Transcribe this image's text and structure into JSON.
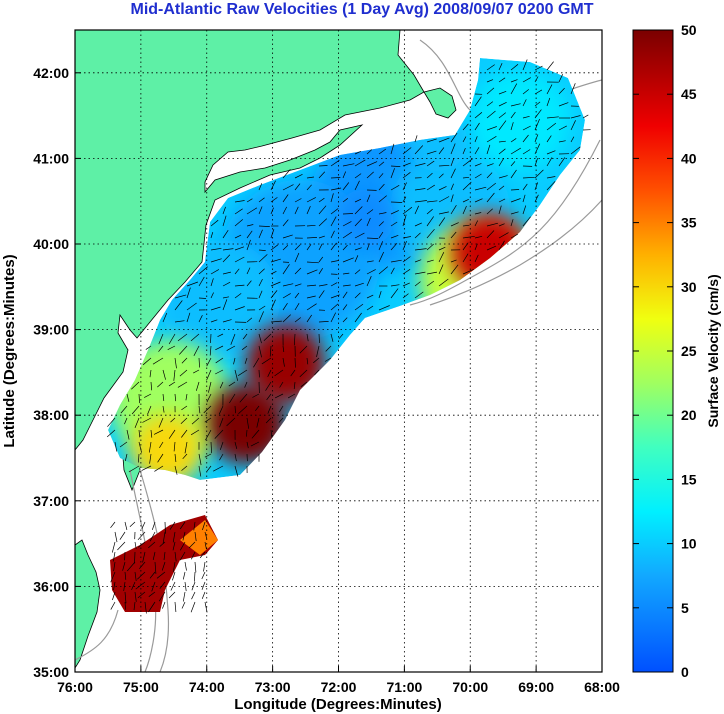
{
  "title": "Mid-Atlantic Raw Velocities (1 Day Avg) 2008/09/07 0200 GMT",
  "colors": {
    "land": "#5ef0a6",
    "title": "#1f2ecf",
    "vector": "#000000",
    "contour": "#9a9a9a"
  },
  "chart_data": {
    "type": "heatmap",
    "xlabel": "Longitude (Degrees:Minutes)",
    "ylabel": "Latitude (Degrees:Minutes)",
    "x_ticks": [
      {
        "value": 76,
        "label": "76:00"
      },
      {
        "value": 75,
        "label": "75:00"
      },
      {
        "value": 74,
        "label": "74:00"
      },
      {
        "value": 73,
        "label": "73:00"
      },
      {
        "value": 72,
        "label": "72:00"
      },
      {
        "value": 71,
        "label": "71:00"
      },
      {
        "value": 70,
        "label": "70:00"
      },
      {
        "value": 69,
        "label": "69:00"
      },
      {
        "value": 68,
        "label": "68:00"
      }
    ],
    "y_ticks": [
      {
        "value": 42,
        "label": "42:00"
      },
      {
        "value": 41,
        "label": "41:00"
      },
      {
        "value": 40,
        "label": "40:00"
      },
      {
        "value": 39,
        "label": "39:00"
      },
      {
        "value": 38,
        "label": "38:00"
      },
      {
        "value": 37,
        "label": "37:00"
      },
      {
        "value": 36,
        "label": "36:00"
      },
      {
        "value": 35,
        "label": "35:00"
      }
    ],
    "xlim": [
      76,
      68
    ],
    "ylim": [
      35,
      42.5
    ],
    "grid": true,
    "colorbar": {
      "label": "Surface Velocity (cm/s)",
      "range": [
        0,
        50
      ],
      "ticks": [
        {
          "value": 0,
          "label": "0"
        },
        {
          "value": 5,
          "label": "5"
        },
        {
          "value": 10,
          "label": "10"
        },
        {
          "value": 15,
          "label": "15"
        },
        {
          "value": 20,
          "label": "20"
        },
        {
          "value": 25,
          "label": "25"
        },
        {
          "value": 30,
          "label": "30"
        },
        {
          "value": 35,
          "label": "35"
        },
        {
          "value": 40,
          "label": "40"
        },
        {
          "value": 45,
          "label": "45"
        },
        {
          "value": 50,
          "label": "50"
        }
      ]
    },
    "velocity_features": [
      {
        "name": "",
        "lon": 73.4,
        "lat": 37.9,
        "speed": 50
      },
      {
        "name": "",
        "lon": 72.8,
        "lat": 38.6,
        "speed": 48
      },
      {
        "name": "",
        "lon": 74.6,
        "lat": 37.6,
        "speed": 30
      },
      {
        "name": "",
        "lon": 75.1,
        "lat": 36.0,
        "speed": 50
      },
      {
        "name": "",
        "lon": 74.3,
        "lat": 36.5,
        "speed": 45
      },
      {
        "name": "",
        "lon": 69.7,
        "lat": 39.9,
        "speed": 45
      },
      {
        "name": "",
        "lon": 71.6,
        "lat": 40.3,
        "speed": 5
      },
      {
        "name": "",
        "lon": 70.5,
        "lat": 41.2,
        "speed": 9
      }
    ]
  }
}
